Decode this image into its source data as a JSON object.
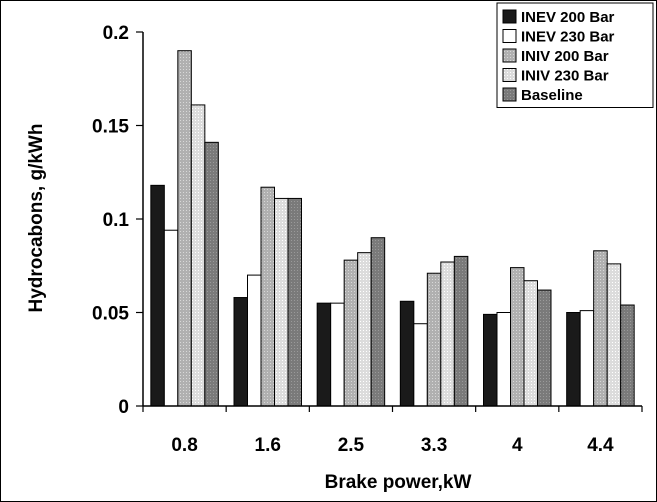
{
  "chart_data": {
    "type": "bar",
    "title": "",
    "xlabel": "Brake power,kW",
    "ylabel": "Hydrocabons, g/kWh",
    "categories": [
      "0.8",
      "1.6",
      "2.5",
      "3.3",
      "4",
      "4.4"
    ],
    "ylim": [
      0,
      0.2
    ],
    "yticks": [
      0,
      0.05,
      0.1,
      0.15,
      0.2
    ],
    "ytick_labels": [
      "0",
      "0.05",
      "0.1",
      "0.15",
      "0.2"
    ],
    "grid": false,
    "legend_position": "top-right",
    "series": [
      {
        "name": "INEV 200 Bar",
        "color": "#1a1a1a",
        "values": [
          0.118,
          0.058,
          0.055,
          0.056,
          0.049,
          0.05
        ]
      },
      {
        "name": "INEV 230 Bar",
        "color": "#ffffff",
        "values": [
          0.094,
          0.07,
          0.055,
          0.044,
          0.05,
          0.051
        ]
      },
      {
        "name": "INIV  200 Bar",
        "color": "#b3b3b3",
        "values": [
          0.19,
          0.117,
          0.078,
          0.071,
          0.074,
          0.083
        ]
      },
      {
        "name": "INIV  230 Bar",
        "color": "#d9d9d9",
        "values": [
          0.161,
          0.111,
          0.082,
          0.077,
          0.067,
          0.076
        ]
      },
      {
        "name": "Baseline",
        "color": "#7a7a7a",
        "values": [
          0.141,
          0.111,
          0.09,
          0.08,
          0.062,
          0.054
        ]
      }
    ]
  }
}
